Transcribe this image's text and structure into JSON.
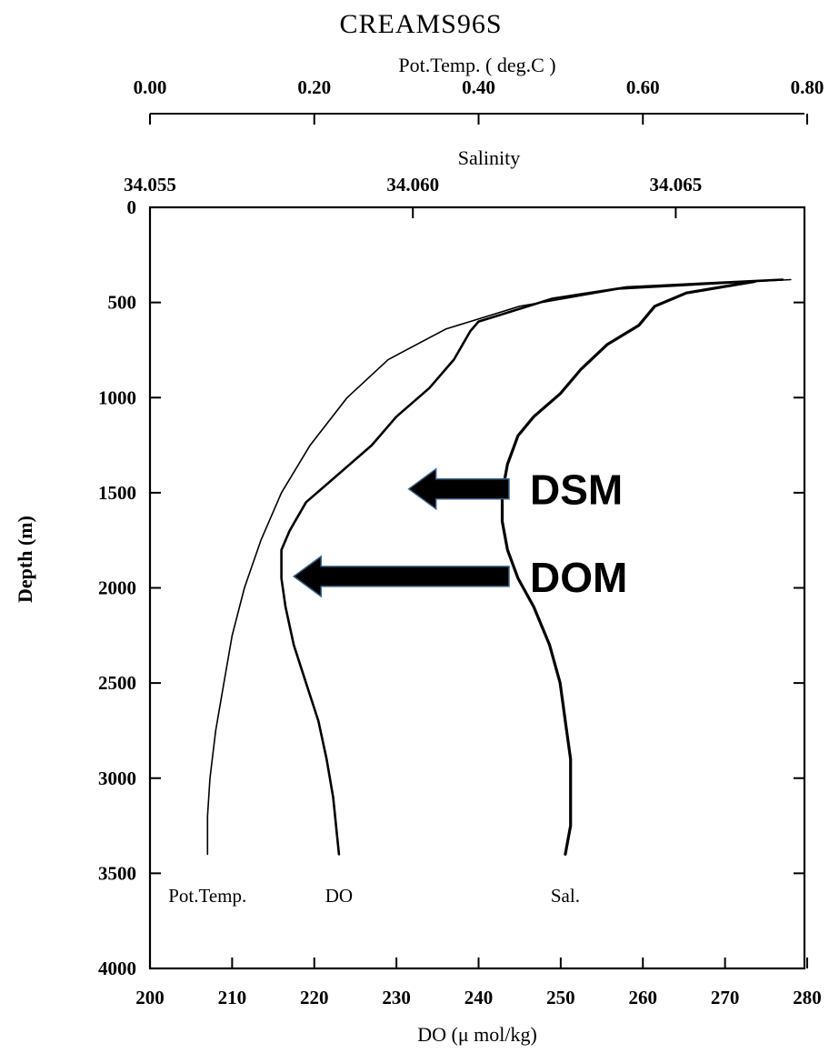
{
  "chart_data": {
    "type": "line",
    "title": "CREAMS96S",
    "axes": {
      "temperature": {
        "label": "Pot.Temp. ( deg.C )",
        "range": [
          0.0,
          0.8
        ],
        "ticks": [
          "0.00",
          "0.20",
          "0.40",
          "0.60",
          "0.80"
        ]
      },
      "salinity": {
        "label": "Salinity",
        "range": [
          34.055,
          34.0675
        ],
        "ticks": [
          "34.055",
          "34.060",
          "34.065"
        ]
      },
      "do": {
        "label": "DO (μ mol/kg)",
        "range": [
          200,
          280
        ],
        "ticks": [
          "200",
          "210",
          "220",
          "230",
          "240",
          "250",
          "260",
          "270",
          "280"
        ]
      },
      "depth": {
        "label": "Depth (m)",
        "range": [
          0,
          4000
        ],
        "reversed": true,
        "ticks": [
          "0",
          "500",
          "1000",
          "1500",
          "2000",
          "2500",
          "3000",
          "3500",
          "4000"
        ]
      }
    },
    "series": [
      {
        "name": "Pot.Temp.",
        "axis": "temperature",
        "points": [
          [
            0.78,
            380
          ],
          [
            0.57,
            430
          ],
          [
            0.45,
            520
          ],
          [
            0.36,
            640
          ],
          [
            0.29,
            800
          ],
          [
            0.24,
            1000
          ],
          [
            0.195,
            1250
          ],
          [
            0.16,
            1500
          ],
          [
            0.135,
            1750
          ],
          [
            0.115,
            2000
          ],
          [
            0.1,
            2250
          ],
          [
            0.09,
            2500
          ],
          [
            0.08,
            2750
          ],
          [
            0.073,
            3000
          ],
          [
            0.07,
            3200
          ],
          [
            0.07,
            3400
          ]
        ]
      },
      {
        "name": "DO",
        "axis": "do",
        "points": [
          [
            277,
            380
          ],
          [
            258,
            420
          ],
          [
            249,
            480
          ],
          [
            243,
            560
          ],
          [
            240,
            600
          ],
          [
            239,
            650
          ],
          [
            237,
            800
          ],
          [
            234,
            950
          ],
          [
            230,
            1100
          ],
          [
            227,
            1250
          ],
          [
            223,
            1400
          ],
          [
            219,
            1550
          ],
          [
            217,
            1700
          ],
          [
            216,
            1800
          ],
          [
            216,
            1950
          ],
          [
            216.5,
            2100
          ],
          [
            217.5,
            2300
          ],
          [
            219,
            2500
          ],
          [
            220.5,
            2700
          ],
          [
            221.5,
            2900
          ],
          [
            222.3,
            3100
          ],
          [
            223,
            3400
          ]
        ]
      },
      {
        "name": "Sal.",
        "axis": "salinity",
        "points": [
          [
            34.0665,
            390
          ],
          [
            34.0652,
            450
          ],
          [
            34.0646,
            520
          ],
          [
            34.0643,
            620
          ],
          [
            34.0637,
            720
          ],
          [
            34.0632,
            850
          ],
          [
            34.0628,
            980
          ],
          [
            34.0623,
            1100
          ],
          [
            34.062,
            1200
          ],
          [
            34.0618,
            1350
          ],
          [
            34.0617,
            1500
          ],
          [
            34.0617,
            1650
          ],
          [
            34.0618,
            1800
          ],
          [
            34.062,
            1950
          ],
          [
            34.0623,
            2100
          ],
          [
            34.0626,
            2300
          ],
          [
            34.0628,
            2500
          ],
          [
            34.0629,
            2700
          ],
          [
            34.063,
            2900
          ],
          [
            34.063,
            3100
          ],
          [
            34.063,
            3250
          ],
          [
            34.0629,
            3400
          ]
        ]
      }
    ],
    "annotations": [
      {
        "label": "DSM",
        "depth": 1480,
        "arrow_tip_do": 231.5
      },
      {
        "label": "DOM",
        "depth": 1940,
        "arrow_tip_do": 217.5
      }
    ]
  }
}
